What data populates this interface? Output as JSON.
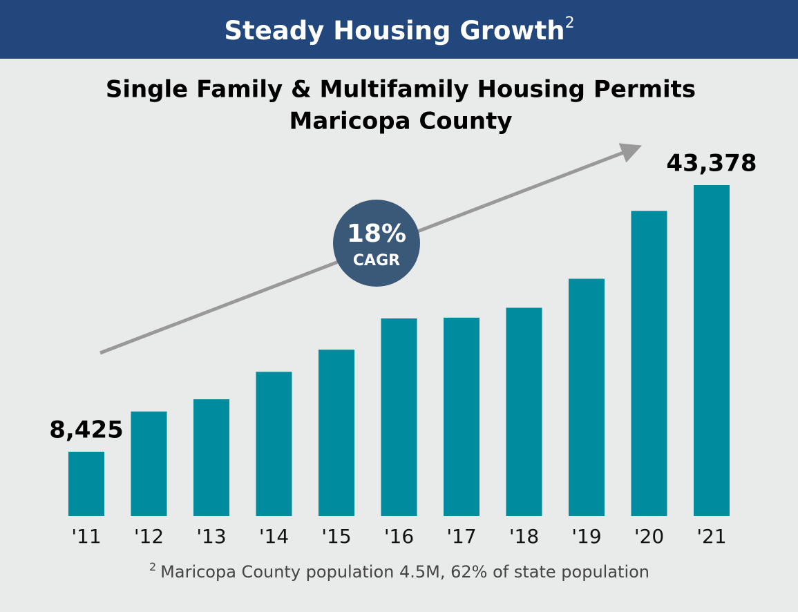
{
  "header": {
    "title": "Steady Housing Growth",
    "footnote_ref": "2"
  },
  "chart_data": {
    "type": "bar",
    "title": "Single Family & Multifamily Housing Permits",
    "subtitle": "Maricopa County",
    "categories": [
      "'11",
      "'12",
      "'13",
      "'14",
      "'15",
      "'16",
      "'17",
      "'18",
      "'19",
      "'20",
      "'21"
    ],
    "values": [
      8425,
      13700,
      15300,
      18900,
      21800,
      25900,
      26000,
      27300,
      31100,
      40000,
      43378
    ],
    "value_labels": [
      "8,425",
      null,
      null,
      null,
      null,
      null,
      null,
      null,
      null,
      null,
      "43,378"
    ],
    "color": "#008b9e",
    "annotation": {
      "value": "18%",
      "label": "CAGR"
    }
  },
  "footnote": {
    "marker": "2",
    "text": "Maricopa County population 4.5M, 62% of state population"
  }
}
